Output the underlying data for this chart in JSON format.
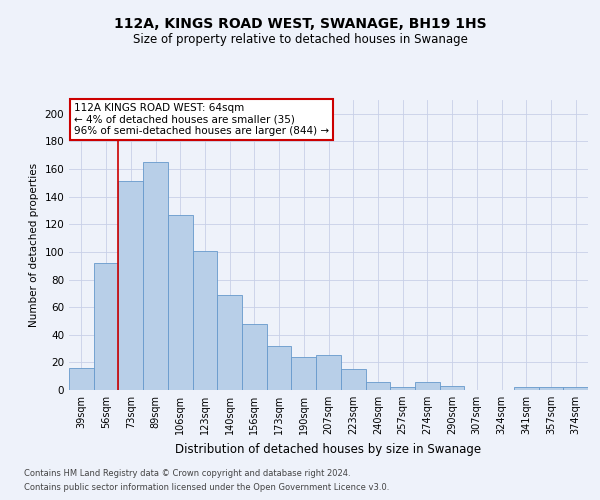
{
  "title1": "112A, KINGS ROAD WEST, SWANAGE, BH19 1HS",
  "title2": "Size of property relative to detached houses in Swanage",
  "xlabel": "Distribution of detached houses by size in Swanage",
  "ylabel": "Number of detached properties",
  "categories": [
    "39sqm",
    "56sqm",
    "73sqm",
    "89sqm",
    "106sqm",
    "123sqm",
    "140sqm",
    "156sqm",
    "173sqm",
    "190sqm",
    "207sqm",
    "223sqm",
    "240sqm",
    "257sqm",
    "274sqm",
    "290sqm",
    "307sqm",
    "324sqm",
    "341sqm",
    "357sqm",
    "374sqm"
  ],
  "values": [
    16,
    92,
    151,
    165,
    127,
    101,
    69,
    48,
    32,
    24,
    25,
    15,
    6,
    2,
    6,
    3,
    0,
    0,
    2,
    2,
    2
  ],
  "bar_color": "#b8cfe8",
  "bar_edge_color": "#6699cc",
  "background_color": "#eef2fa",
  "grid_color": "#c8d0e8",
  "annotation_line1": "112A KINGS ROAD WEST: 64sqm",
  "annotation_line2": "← 4% of detached houses are smaller (35)",
  "annotation_line3": "96% of semi-detached houses are larger (844) →",
  "annotation_box_color": "#ffffff",
  "annotation_box_edge": "#cc0000",
  "vline_x_index": 1.5,
  "vline_color": "#cc0000",
  "ylim": [
    0,
    210
  ],
  "yticks": [
    0,
    20,
    40,
    60,
    80,
    100,
    120,
    140,
    160,
    180,
    200
  ],
  "footer1": "Contains HM Land Registry data © Crown copyright and database right 2024.",
  "footer2": "Contains public sector information licensed under the Open Government Licence v3.0."
}
